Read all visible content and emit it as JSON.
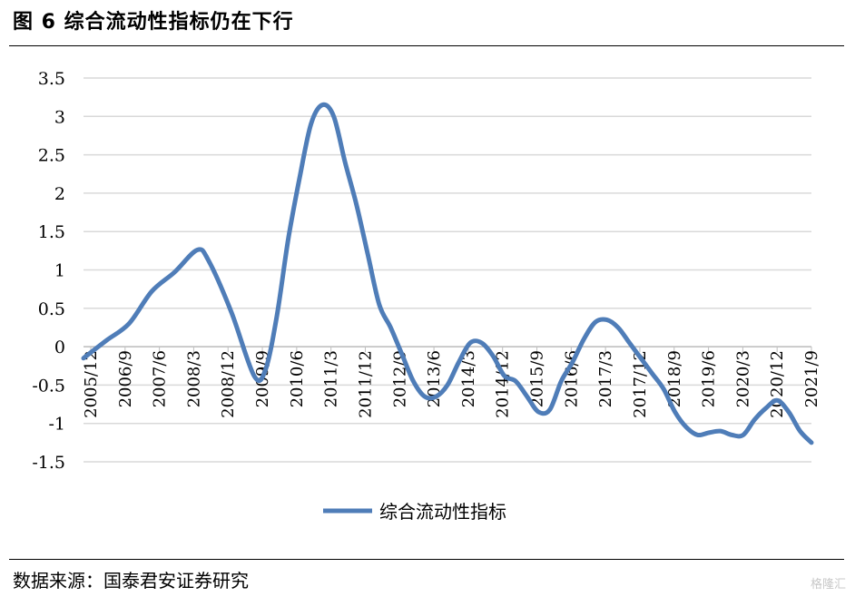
{
  "header": {
    "title": "图 6  综合流动性指标仍在下行"
  },
  "footer": {
    "source": "数据来源：国泰君安证券研究",
    "watermark": "格隆汇"
  },
  "chart_data": {
    "type": "line",
    "title": "综合流动性指标仍在下行",
    "xlabel": "",
    "ylabel": "",
    "ylim": [
      -1.5,
      3.5
    ],
    "yticks": [
      "3.5",
      "3",
      "2.5",
      "2",
      "1.5",
      "1",
      "0.5",
      "0",
      "-0.5",
      "-1",
      "-1.5"
    ],
    "grid": true,
    "legend_position": "bottom",
    "color": "#4F7DB8",
    "x_tick_labels": [
      "2005/12",
      "2006/9",
      "2007/6",
      "2008/3",
      "2008/12",
      "2009/9",
      "2010/6",
      "2011/3",
      "2011/12",
      "2012/9",
      "2013/6",
      "2014/3",
      "2014/12",
      "2015/9",
      "2016/6",
      "2017/3",
      "2017/12",
      "2018/9",
      "2019/6",
      "2020/3",
      "2020/12",
      "2021/9"
    ],
    "series": [
      {
        "name": "综合流动性指标",
        "points": [
          {
            "x": 0,
            "y": -0.15
          },
          {
            "x": 2,
            "y": 0.08
          },
          {
            "x": 4,
            "y": 0.3
          },
          {
            "x": 6,
            "y": 0.72
          },
          {
            "x": 8,
            "y": 0.97
          },
          {
            "x": 10,
            "y": 1.26
          },
          {
            "x": 11,
            "y": 1.12
          },
          {
            "x": 13,
            "y": 0.45
          },
          {
            "x": 15,
            "y": -0.38
          },
          {
            "x": 16,
            "y": -0.3
          },
          {
            "x": 17,
            "y": 0.4
          },
          {
            "x": 18,
            "y": 1.4
          },
          {
            "x": 19,
            "y": 2.2
          },
          {
            "x": 20,
            "y": 2.9
          },
          {
            "x": 21,
            "y": 3.15
          },
          {
            "x": 22,
            "y": 3.0
          },
          {
            "x": 23,
            "y": 2.4
          },
          {
            "x": 24,
            "y": 1.85
          },
          {
            "x": 25,
            "y": 1.2
          },
          {
            "x": 26,
            "y": 0.55
          },
          {
            "x": 27,
            "y": 0.25
          },
          {
            "x": 28,
            "y": -0.1
          },
          {
            "x": 29,
            "y": -0.45
          },
          {
            "x": 30,
            "y": -0.65
          },
          {
            "x": 31,
            "y": -0.65
          },
          {
            "x": 32,
            "y": -0.5
          },
          {
            "x": 33,
            "y": -0.2
          },
          {
            "x": 34,
            "y": 0.05
          },
          {
            "x": 35,
            "y": 0.05
          },
          {
            "x": 36,
            "y": -0.12
          },
          {
            "x": 37,
            "y": -0.38
          },
          {
            "x": 38,
            "y": -0.45
          },
          {
            "x": 39,
            "y": -0.65
          },
          {
            "x": 40,
            "y": -0.85
          },
          {
            "x": 41,
            "y": -0.82
          },
          {
            "x": 42,
            "y": -0.45
          },
          {
            "x": 43,
            "y": -0.2
          },
          {
            "x": 44,
            "y": 0.1
          },
          {
            "x": 45,
            "y": 0.32
          },
          {
            "x": 46,
            "y": 0.35
          },
          {
            "x": 47,
            "y": 0.25
          },
          {
            "x": 48,
            "y": 0.05
          },
          {
            "x": 49,
            "y": -0.15
          },
          {
            "x": 50,
            "y": -0.35
          },
          {
            "x": 51,
            "y": -0.55
          },
          {
            "x": 52,
            "y": -0.85
          },
          {
            "x": 53,
            "y": -1.05
          },
          {
            "x": 54,
            "y": -1.15
          },
          {
            "x": 55,
            "y": -1.12
          },
          {
            "x": 56,
            "y": -1.1
          },
          {
            "x": 57,
            "y": -1.15
          },
          {
            "x": 58,
            "y": -1.15
          },
          {
            "x": 59,
            "y": -0.95
          },
          {
            "x": 60,
            "y": -0.8
          },
          {
            "x": 61,
            "y": -0.7
          },
          {
            "x": 62,
            "y": -0.85
          },
          {
            "x": 63,
            "y": -1.1
          },
          {
            "x": 64,
            "y": -1.25
          }
        ]
      }
    ]
  }
}
